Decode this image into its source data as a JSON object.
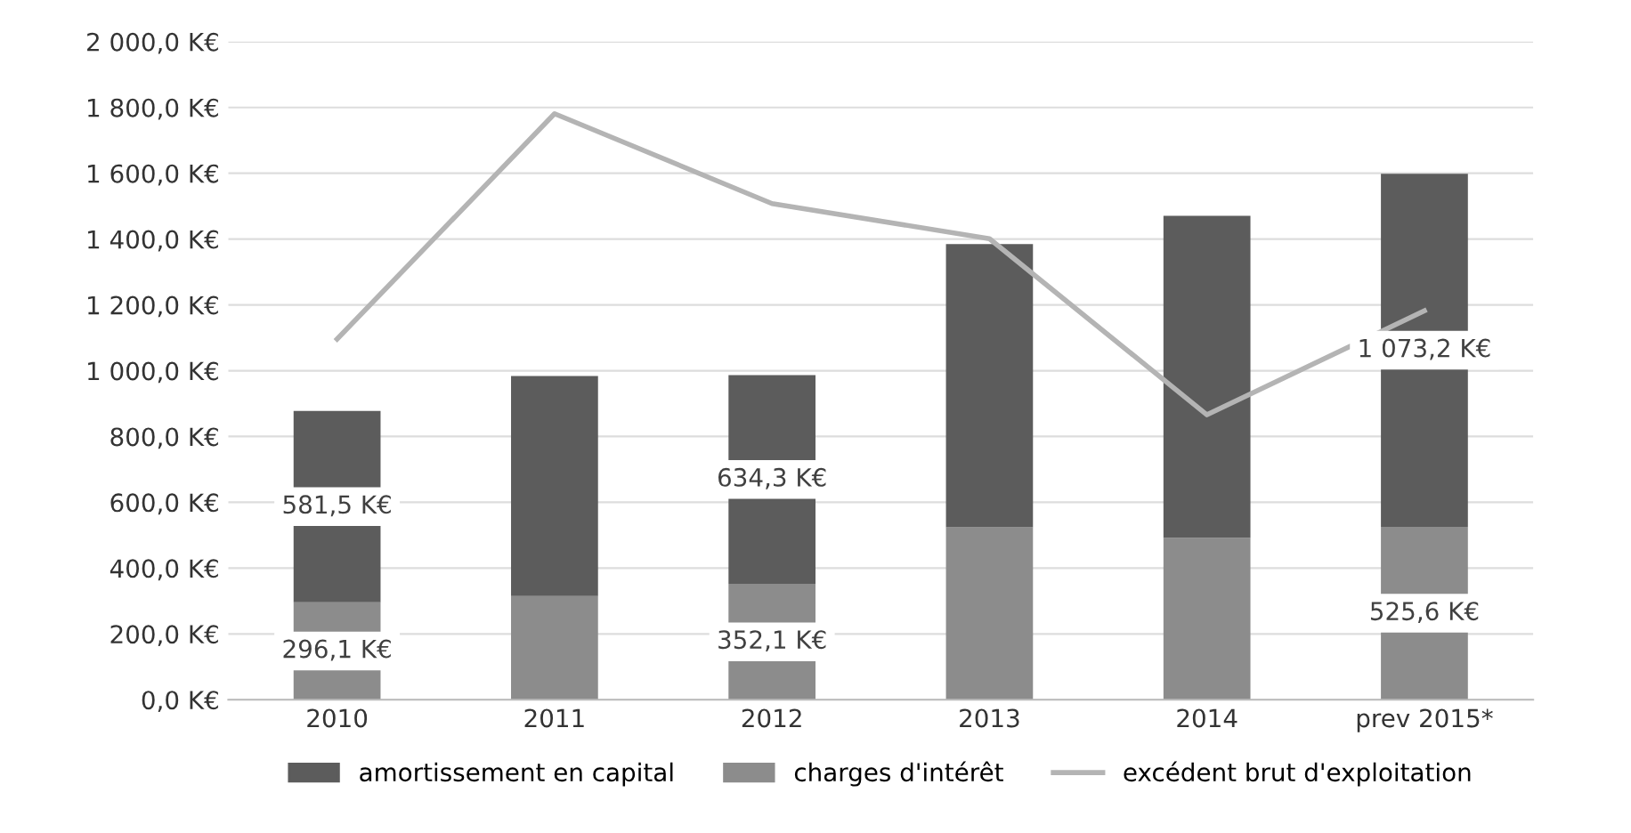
{
  "chart_data": {
    "type": "bar",
    "stacked": true,
    "categories": [
      "2010",
      "2011",
      "2012",
      "2013",
      "2014",
      "prev 2015*"
    ],
    "series": [
      {
        "name": "charges d'intérêt",
        "color": "#8c8c8c",
        "values": [
          296.1,
          315,
          352.1,
          524,
          492,
          525.6
        ],
        "value_labels": [
          "296,1 K€",
          null,
          "352,1 K€",
          null,
          null,
          "525,6 K€"
        ]
      },
      {
        "name": "amortissement en capital",
        "color": "#5c5c5c",
        "values": [
          581.5,
          669,
          634.3,
          861,
          979,
          1073.2
        ],
        "value_labels": [
          "581,5 K€",
          null,
          "634,3 K€",
          null,
          null,
          "1 073,2 K€"
        ]
      },
      {
        "name": "excédent brut d'exploitation",
        "type": "line",
        "color": "#b4b4b4",
        "values": [
          1096,
          1781,
          1508,
          1401,
          866,
          1182
        ]
      }
    ],
    "ylim": [
      0,
      2000
    ],
    "yticks": [
      {
        "value": 0,
        "label": "0,0 K€"
      },
      {
        "value": 200,
        "label": "200,0 K€"
      },
      {
        "value": 400,
        "label": "400,0 K€"
      },
      {
        "value": 600,
        "label": "600,0 K€"
      },
      {
        "value": 800,
        "label": "800,0 K€"
      },
      {
        "value": 1000,
        "label": "1 000,0 K€"
      },
      {
        "value": 1200,
        "label": "1 200,0 K€"
      },
      {
        "value": 1400,
        "label": "1 400,0 K€"
      },
      {
        "value": 1600,
        "label": "1 600,0 K€"
      },
      {
        "value": 1800,
        "label": "1 800,0 K€"
      },
      {
        "value": 2000,
        "label": "2 000,0 K€"
      }
    ],
    "grid": "y",
    "legend": "bottom",
    "marker": "none"
  }
}
